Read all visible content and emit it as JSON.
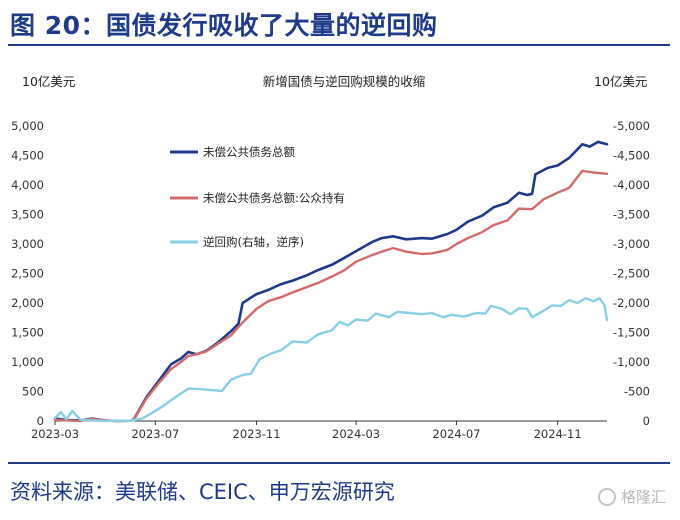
{
  "figure": {
    "title": "图 20：国债发行吸收了大量的逆回购",
    "source": "资料来源：美联储、CEIC、申万宏源研究",
    "watermark": "格隆汇"
  },
  "colors": {
    "series1": "#1f3a8a",
    "series2": "#d46b6b",
    "series3": "#87cfe6",
    "accent": "#1f3b8c"
  },
  "chart_data": {
    "type": "line",
    "title": "新增国债与逆回购规模的收缩",
    "ylabel_left": "10亿美元",
    "ylabel_right": "10亿美元",
    "ylim_left": [
      0,
      5000
    ],
    "ylim_right": [
      0,
      -5000
    ],
    "yticks_left": [
      "0",
      "500",
      "1,000",
      "1,500",
      "2,000",
      "2,500",
      "3,000",
      "3,500",
      "4,000",
      "4,500",
      "5,000"
    ],
    "yticks_right": [
      "0",
      "-500",
      "-1,000",
      "-1,500",
      "-2,000",
      "-2,500",
      "-3,000",
      "-3,500",
      "-4,000",
      "-4,500",
      "-5,000"
    ],
    "xlim": [
      "2023-03-01",
      "2024-12-31"
    ],
    "xticks": [
      "2023-03",
      "2023-07",
      "2023-11",
      "2024-03",
      "2024-07",
      "2024-11"
    ],
    "grid": false,
    "legend_position": "top-left",
    "series": [
      {
        "name": "未偿公共债务总额",
        "axis": "left",
        "points": [
          [
            "2023-03-01",
            40
          ],
          [
            "2023-03-15",
            15
          ],
          [
            "2023-04-01",
            10
          ],
          [
            "2023-04-15",
            40
          ],
          [
            "2023-05-01",
            10
          ],
          [
            "2023-05-15",
            0
          ],
          [
            "2023-06-01",
            5
          ],
          [
            "2023-06-05",
            30
          ],
          [
            "2023-06-20",
            400
          ],
          [
            "2023-07-05",
            680
          ],
          [
            "2023-07-20",
            960
          ],
          [
            "2023-08-01",
            1060
          ],
          [
            "2023-08-10",
            1170
          ],
          [
            "2023-08-20",
            1130
          ],
          [
            "2023-09-01",
            1190
          ],
          [
            "2023-09-15",
            1330
          ],
          [
            "2023-10-01",
            1520
          ],
          [
            "2023-10-10",
            1650
          ],
          [
            "2023-10-15",
            2000
          ],
          [
            "2023-11-01",
            2150
          ],
          [
            "2023-11-15",
            2220
          ],
          [
            "2023-12-01",
            2320
          ],
          [
            "2023-12-15",
            2380
          ],
          [
            "2024-01-01",
            2470
          ],
          [
            "2024-01-15",
            2560
          ],
          [
            "2024-02-01",
            2650
          ],
          [
            "2024-02-15",
            2760
          ],
          [
            "2024-03-01",
            2880
          ],
          [
            "2024-03-20",
            3030
          ],
          [
            "2024-04-01",
            3100
          ],
          [
            "2024-04-15",
            3130
          ],
          [
            "2024-05-01",
            3080
          ],
          [
            "2024-05-20",
            3100
          ],
          [
            "2024-06-01",
            3090
          ],
          [
            "2024-06-20",
            3170
          ],
          [
            "2024-07-01",
            3240
          ],
          [
            "2024-07-15",
            3380
          ],
          [
            "2024-08-01",
            3480
          ],
          [
            "2024-08-15",
            3620
          ],
          [
            "2024-09-01",
            3700
          ],
          [
            "2024-09-15",
            3870
          ],
          [
            "2024-09-25",
            3830
          ],
          [
            "2024-10-01",
            3850
          ],
          [
            "2024-10-05",
            4180
          ],
          [
            "2024-10-20",
            4290
          ],
          [
            "2024-11-01",
            4330
          ],
          [
            "2024-11-15",
            4460
          ],
          [
            "2024-12-01",
            4690
          ],
          [
            "2024-12-10",
            4650
          ],
          [
            "2024-12-20",
            4730
          ],
          [
            "2024-12-31",
            4690
          ]
        ]
      },
      {
        "name": "未偿公共债务总额:公众持有",
        "axis": "left",
        "points": [
          [
            "2023-03-01",
            20
          ],
          [
            "2023-03-15",
            10
          ],
          [
            "2023-04-01",
            0
          ],
          [
            "2023-04-15",
            35
          ],
          [
            "2023-05-01",
            10
          ],
          [
            "2023-05-15",
            0
          ],
          [
            "2023-06-01",
            5
          ],
          [
            "2023-06-05",
            25
          ],
          [
            "2023-06-20",
            380
          ],
          [
            "2023-07-05",
            640
          ],
          [
            "2023-07-20",
            880
          ],
          [
            "2023-08-01",
            1000
          ],
          [
            "2023-08-10",
            1100
          ],
          [
            "2023-08-20",
            1130
          ],
          [
            "2023-09-01",
            1180
          ],
          [
            "2023-09-15",
            1310
          ],
          [
            "2023-10-01",
            1450
          ],
          [
            "2023-10-15",
            1670
          ],
          [
            "2023-11-01",
            1900
          ],
          [
            "2023-11-15",
            2030
          ],
          [
            "2023-12-01",
            2100
          ],
          [
            "2023-12-15",
            2180
          ],
          [
            "2024-01-01",
            2270
          ],
          [
            "2024-01-15",
            2340
          ],
          [
            "2024-02-01",
            2450
          ],
          [
            "2024-02-15",
            2550
          ],
          [
            "2024-03-01",
            2700
          ],
          [
            "2024-03-20",
            2810
          ],
          [
            "2024-04-01",
            2870
          ],
          [
            "2024-04-15",
            2930
          ],
          [
            "2024-05-01",
            2870
          ],
          [
            "2024-05-20",
            2830
          ],
          [
            "2024-06-01",
            2840
          ],
          [
            "2024-06-20",
            2900
          ],
          [
            "2024-07-01",
            3000
          ],
          [
            "2024-07-15",
            3100
          ],
          [
            "2024-08-01",
            3200
          ],
          [
            "2024-08-15",
            3320
          ],
          [
            "2024-09-01",
            3400
          ],
          [
            "2024-09-15",
            3600
          ],
          [
            "2024-10-01",
            3590
          ],
          [
            "2024-10-15",
            3760
          ],
          [
            "2024-11-01",
            3870
          ],
          [
            "2024-11-15",
            3950
          ],
          [
            "2024-12-01",
            4240
          ],
          [
            "2024-12-15",
            4210
          ],
          [
            "2024-12-31",
            4190
          ]
        ]
      },
      {
        "name": "逆回购(右轴，逆序)",
        "axis": "right",
        "points": [
          [
            "2023-03-01",
            -50
          ],
          [
            "2023-03-08",
            -150
          ],
          [
            "2023-03-15",
            -30
          ],
          [
            "2023-03-22",
            -170
          ],
          [
            "2023-04-01",
            -20
          ],
          [
            "2023-05-01",
            0
          ],
          [
            "2023-06-01",
            -5
          ],
          [
            "2023-06-15",
            -40
          ],
          [
            "2023-06-25",
            -120
          ],
          [
            "2023-07-10",
            -250
          ],
          [
            "2023-07-25",
            -400
          ],
          [
            "2023-08-10",
            -550
          ],
          [
            "2023-08-25",
            -540
          ],
          [
            "2023-09-10",
            -520
          ],
          [
            "2023-09-20",
            -510
          ],
          [
            "2023-10-01",
            -700
          ],
          [
            "2023-10-15",
            -780
          ],
          [
            "2023-10-25",
            -800
          ],
          [
            "2023-11-05",
            -1050
          ],
          [
            "2023-11-20",
            -1150
          ],
          [
            "2023-12-01",
            -1200
          ],
          [
            "2023-12-15",
            -1350
          ],
          [
            "2024-01-01",
            -1330
          ],
          [
            "2024-01-15",
            -1470
          ],
          [
            "2024-02-01",
            -1540
          ],
          [
            "2024-02-10",
            -1680
          ],
          [
            "2024-02-20",
            -1620
          ],
          [
            "2024-03-01",
            -1720
          ],
          [
            "2024-03-15",
            -1700
          ],
          [
            "2024-03-25",
            -1820
          ],
          [
            "2024-04-10",
            -1760
          ],
          [
            "2024-04-20",
            -1850
          ],
          [
            "2024-05-05",
            -1830
          ],
          [
            "2024-05-20",
            -1810
          ],
          [
            "2024-06-01",
            -1830
          ],
          [
            "2024-06-15",
            -1760
          ],
          [
            "2024-06-25",
            -1800
          ],
          [
            "2024-07-10",
            -1770
          ],
          [
            "2024-07-25",
            -1830
          ],
          [
            "2024-08-05",
            -1820
          ],
          [
            "2024-08-12",
            -1950
          ],
          [
            "2024-08-25",
            -1900
          ],
          [
            "2024-09-05",
            -1810
          ],
          [
            "2024-09-15",
            -1910
          ],
          [
            "2024-09-25",
            -1900
          ],
          [
            "2024-10-01",
            -1760
          ],
          [
            "2024-10-15",
            -1870
          ],
          [
            "2024-10-25",
            -1960
          ],
          [
            "2024-11-05",
            -1950
          ],
          [
            "2024-11-15",
            -2050
          ],
          [
            "2024-11-25",
            -2000
          ],
          [
            "2024-12-05",
            -2080
          ],
          [
            "2024-12-15",
            -2030
          ],
          [
            "2024-12-22",
            -2080
          ],
          [
            "2024-12-28",
            -1960
          ],
          [
            "2024-12-31",
            -1710
          ]
        ]
      }
    ]
  }
}
